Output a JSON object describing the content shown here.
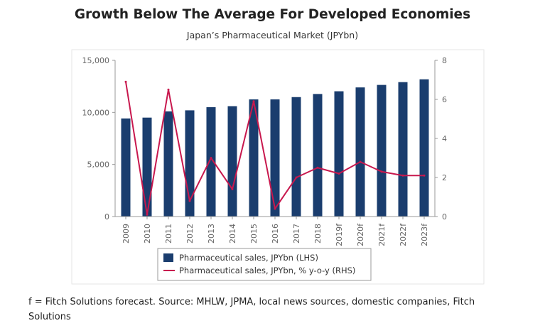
{
  "title": "Growth Below The Average For Developed Economies",
  "subtitle": "Japan’s Pharmaceutical Market (JPYbn)",
  "footnote": "f = Fitch Solutions forecast. Source: MHLW, JPMA, local news sources, domestic companies, Fitch Solutions",
  "chart_data": {
    "type": "bar",
    "categories": [
      "2009",
      "2010",
      "2011",
      "2012",
      "2013",
      "2014",
      "2015",
      "2016",
      "2017",
      "2018",
      "2019f",
      "2020f",
      "2021f",
      "2022f",
      "2023f"
    ],
    "series": [
      {
        "name": "Pharmaceutical sales, JPYbn (LHS)",
        "type": "bar",
        "axis": "left",
        "color": "#1a3d6e",
        "values": [
          9420,
          9500,
          10100,
          10200,
          10500,
          10600,
          11250,
          11250,
          11470,
          11770,
          12030,
          12400,
          12640,
          12910,
          13180
        ]
      },
      {
        "name": "Pharmaceutical sales, JPYbn, % y-o-y (RHS)",
        "type": "line",
        "axis": "right",
        "color": "#c8184e",
        "values": [
          6.9,
          0.1,
          6.5,
          0.8,
          3.0,
          1.4,
          5.9,
          0.4,
          2.0,
          2.5,
          2.2,
          2.8,
          2.3,
          2.1,
          2.1
        ]
      }
    ],
    "y_left": {
      "min": 0,
      "max": 15000,
      "ticks": [
        "0",
        "5,000",
        "10,000",
        "15,000"
      ],
      "tick_values": [
        0,
        5000,
        10000,
        15000
      ]
    },
    "y_right": {
      "min": 0,
      "max": 8,
      "ticks": [
        "0",
        "2",
        "4",
        "6",
        "8"
      ],
      "tick_values": [
        0,
        2,
        4,
        6,
        8
      ]
    },
    "grid": false,
    "legend_position": "bottom"
  }
}
